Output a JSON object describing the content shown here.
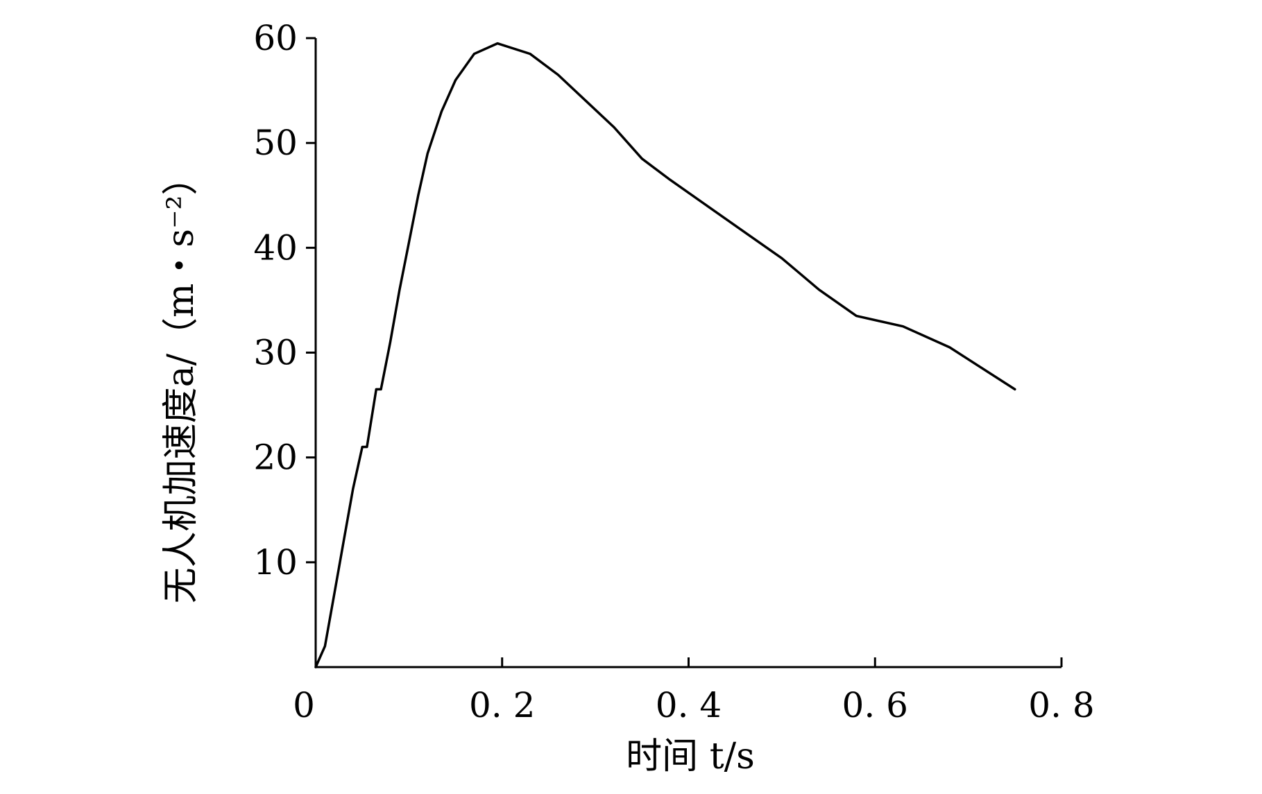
{
  "chart_data": {
    "type": "line",
    "title": "",
    "xlabel": "时间 t/s",
    "ylabel": "无人机加速度a/（m・s⁻²）",
    "xlim": [
      0,
      0.8
    ],
    "ylim": [
      0,
      60
    ],
    "x_ticks": [
      {
        "value": 0,
        "label": "0"
      },
      {
        "value": 0.2,
        "label": "0. 2"
      },
      {
        "value": 0.4,
        "label": "0. 4"
      },
      {
        "value": 0.6,
        "label": "0. 6"
      },
      {
        "value": 0.8,
        "label": "0. 8"
      }
    ],
    "y_ticks": [
      {
        "value": 10,
        "label": "10"
      },
      {
        "value": 20,
        "label": "20"
      },
      {
        "value": 30,
        "label": "30"
      },
      {
        "value": 40,
        "label": "40"
      },
      {
        "value": 50,
        "label": "50"
      },
      {
        "value": 60,
        "label": "60"
      }
    ],
    "grid": false,
    "legend": "none",
    "series": [
      {
        "x": [
          0,
          0.01,
          0.02,
          0.03,
          0.04,
          0.05,
          0.055,
          0.065,
          0.07,
          0.08,
          0.09,
          0.1,
          0.11,
          0.12,
          0.135,
          0.15,
          0.17,
          0.195,
          0.23,
          0.26,
          0.29,
          0.32,
          0.35,
          0.38,
          0.42,
          0.46,
          0.5,
          0.54,
          0.58,
          0.63,
          0.68,
          0.75
        ],
        "y": [
          0,
          2,
          7,
          12,
          17,
          21,
          21,
          26.5,
          26.5,
          31,
          36,
          40.5,
          45,
          49,
          53,
          56,
          58.5,
          59.5,
          58.5,
          56.5,
          54,
          51.5,
          48.5,
          46.5,
          44,
          41.5,
          39,
          36,
          33.5,
          32.5,
          30.5,
          26.5
        ]
      }
    ]
  }
}
